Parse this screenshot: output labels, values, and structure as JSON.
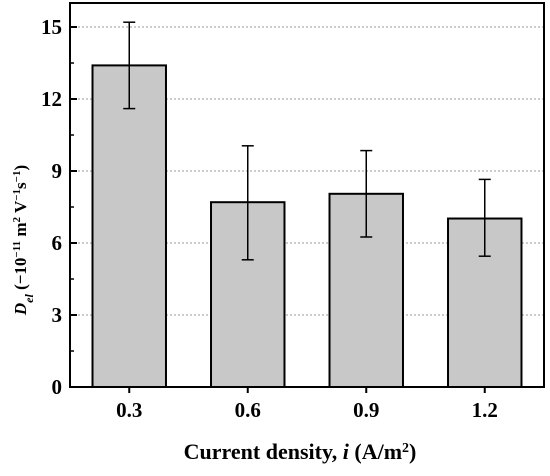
{
  "chart_data": {
    "type": "bar",
    "categories": [
      "0.3",
      "0.6",
      "0.9",
      "1.2"
    ],
    "values": [
      13.4,
      7.7,
      8.05,
      7.02
    ],
    "error_low": [
      11.6,
      5.3,
      6.25,
      5.45
    ],
    "error_high": [
      15.2,
      10.05,
      9.85,
      8.65
    ],
    "ylim": [
      0,
      16
    ],
    "yticks": [
      "0",
      "3",
      "6",
      "9",
      "12",
      "15"
    ],
    "xlabel": {
      "main": "Current density, ",
      "var": "i",
      "unit_open": " (A/m",
      "unit_sup": "2",
      "unit_close": ")"
    },
    "ylabel": {
      "sym": "D",
      "sub": "el",
      "open": " (−10",
      "exp1": "−11",
      "unit_m": " m",
      "exp2": "2",
      "unit_v": " V",
      "exp3": "−1",
      "unit_s": "s",
      "exp4": "−1",
      "close": ")"
    },
    "grid": true,
    "grid_style": "dotted-horizontal",
    "bar_color": "#c8c8c8",
    "edge_color": "#000000"
  }
}
